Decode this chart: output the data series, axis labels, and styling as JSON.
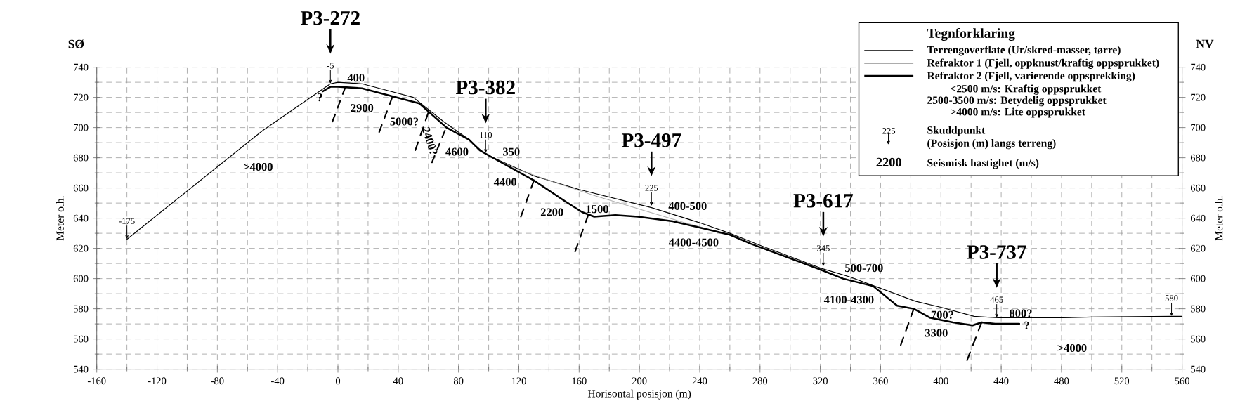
{
  "chart_data": {
    "type": "line",
    "xlabel": "Horisontal posisjon (m)",
    "ylabel": "Meter o.h.",
    "y2label": "Meter o.h.",
    "legend_title": "Tegnforklaring",
    "legend": "top right",
    "grid": true,
    "xlim": [
      -160,
      560
    ],
    "xticks": [
      -160,
      -120,
      -80,
      -40,
      0,
      40,
      80,
      120,
      160,
      200,
      240,
      280,
      320,
      360,
      400,
      440,
      480,
      520,
      560
    ],
    "ylim": [
      540,
      740
    ],
    "yticks": [
      540,
      560,
      580,
      600,
      620,
      640,
      660,
      680,
      700,
      720,
      740
    ],
    "y2lim": [
      540,
      740
    ],
    "y2ticks": [
      540,
      560,
      580,
      600,
      620,
      640,
      660,
      680,
      700,
      720,
      740
    ],
    "series": [
      {
        "name": "Terrengoverflate (Ur/skred-masser, tørre)",
        "color": "#000000",
        "x": [
          -140,
          -50,
          -5,
          0,
          16,
          35,
          50,
          60,
          70,
          87,
          97,
          101,
          130,
          160,
          208,
          240,
          260,
          280,
          320,
          340,
          356,
          383,
          400,
          422,
          438,
          460,
          481,
          500,
          554,
          560
        ],
        "values": [
          626,
          698,
          729,
          730,
          729,
          724,
          720,
          712,
          704,
          692,
          683,
          681,
          668,
          659,
          647,
          637,
          630,
          622,
          607,
          601,
          595,
          585,
          581,
          575,
          574,
          574,
          574,
          574.5,
          575,
          575
        ]
      },
      {
        "name": "Refraktor 1 (Fjell, oppknust/kraftig oppsprukket)",
        "color": "#999999",
        "x": [
          100,
          120,
          140,
          170,
          200,
          230,
          260
        ],
        "values": [
          681,
          672,
          665,
          655,
          646,
          637,
          629
        ]
      },
      {
        "name": "Refraktor 2 (Fjell, varierende oppsprekking)",
        "color": "#000000",
        "x": [
          -10,
          -5,
          0,
          16,
          54,
          72,
          87,
          94,
          101,
          130,
          151,
          162,
          170,
          184,
          199,
          222,
          260,
          274,
          320,
          335,
          355,
          371,
          382,
          393,
          408,
          421,
          427,
          436,
          452
        ],
        "values": [
          724,
          727,
          727,
          726,
          716,
          700,
          692,
          685,
          681,
          665,
          651,
          644,
          641,
          642,
          641,
          638,
          629,
          623,
          606,
          600,
          595,
          582,
          580,
          574,
          571,
          569,
          571,
          570,
          570
        ]
      },
      {
        "color": "#000000",
        "line_style": "dashed",
        "x": [
          5,
          -4
        ],
        "values": [
          727,
          703
        ]
      },
      {
        "color": "#000000",
        "line_style": "dashed",
        "x": [
          36,
          27
        ],
        "values": [
          720,
          696
        ]
      },
      {
        "color": "#000000",
        "line_style": "dashed",
        "x": [
          60,
          51
        ],
        "values": [
          710,
          684
        ]
      },
      {
        "color": "#000000",
        "line_style": "dashed",
        "x": [
          71,
          62
        ],
        "values": [
          698,
          676
        ]
      },
      {
        "color": "#000000",
        "line_style": "dashed",
        "x": [
          130,
          121
        ],
        "values": [
          665,
          640
        ]
      },
      {
        "color": "#000000",
        "line_style": "dashed",
        "x": [
          166,
          157
        ],
        "values": [
          642,
          617
        ]
      },
      {
        "color": "#000000",
        "line_style": "dashed",
        "x": [
          382,
          373
        ],
        "values": [
          580,
          555
        ]
      },
      {
        "color": "#000000",
        "line_style": "dashed",
        "x": [
          427,
          417
        ],
        "values": [
          571,
          545
        ]
      }
    ],
    "annotations": [
      {
        "text": "-175",
        "x": -140,
        "y": 626
      },
      {
        "text": "-5",
        "x": -5,
        "y": 729
      },
      {
        "text": "110",
        "x": 98,
        "y": 683
      },
      {
        "text": "225",
        "x": 208,
        "y": 648
      },
      {
        "text": "345",
        "x": 322,
        "y": 608
      },
      {
        "text": "465",
        "x": 437,
        "y": 574
      },
      {
        "text": "580",
        "x": 553,
        "y": 575
      },
      "SØ",
      "NV",
      "<2500 m/s: Kraftig oppsprukket",
      "2500-3500 m/s: Betydelig oppsprukket",
      ">4000 m/s: Lite oppsprukket",
      "Skuddpunkt",
      "(Posisjon (m) langs terreng)",
      "225",
      "2200",
      "Seismisk hastighet (m/s)",
      "P3-272",
      "P3-382",
      "P3-497",
      "P3-617",
      "P3-737",
      ">4000",
      "400",
      "?",
      "2900",
      "5000?",
      "2400?",
      "4600",
      "350",
      "4400",
      "2200",
      "1500",
      "400-500",
      "4400-4500",
      "500-700",
      "4100-4300",
      "700?",
      "800?",
      "3300",
      "?",
      ">4000"
    ]
  }
}
